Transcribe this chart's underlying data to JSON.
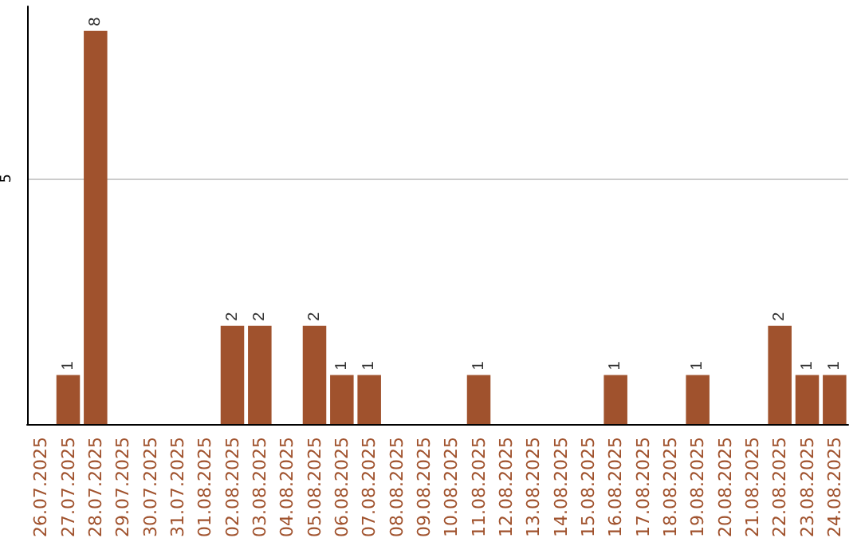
{
  "chart_data": {
    "type": "bar",
    "categories": [
      "26.07.2025",
      "27.07.2025",
      "28.07.2025",
      "29.07.2025",
      "30.07.2025",
      "31.07.2025",
      "01.08.2025",
      "02.08.2025",
      "03.08.2025",
      "04.08.2025",
      "05.08.2025",
      "06.08.2025",
      "07.08.2025",
      "08.08.2025",
      "09.08.2025",
      "10.08.2025",
      "11.08.2025",
      "12.08.2025",
      "13.08.2025",
      "14.08.2025",
      "15.08.2025",
      "16.08.2025",
      "17.08.2025",
      "18.08.2025",
      "19.08.2025",
      "20.08.2025",
      "21.08.2025",
      "22.08.2025",
      "23.08.2025",
      "24.08.2025"
    ],
    "values": [
      0,
      1,
      8,
      0,
      0,
      0,
      0,
      2,
      2,
      0,
      2,
      1,
      1,
      0,
      0,
      0,
      1,
      0,
      0,
      0,
      0,
      1,
      0,
      0,
      1,
      0,
      0,
      2,
      1,
      1
    ],
    "value_labels": [
      null,
      "1",
      "8",
      null,
      null,
      null,
      null,
      "2",
      "2",
      null,
      "2",
      "1",
      "1",
      null,
      null,
      null,
      "1",
      null,
      null,
      null,
      null,
      "1",
      null,
      null,
      "1",
      null,
      null,
      "2",
      "1",
      "1"
    ],
    "color": "#a0522d",
    "ylim": [
      0,
      8.5
    ],
    "yticks": [
      5
    ],
    "grid": "y"
  }
}
